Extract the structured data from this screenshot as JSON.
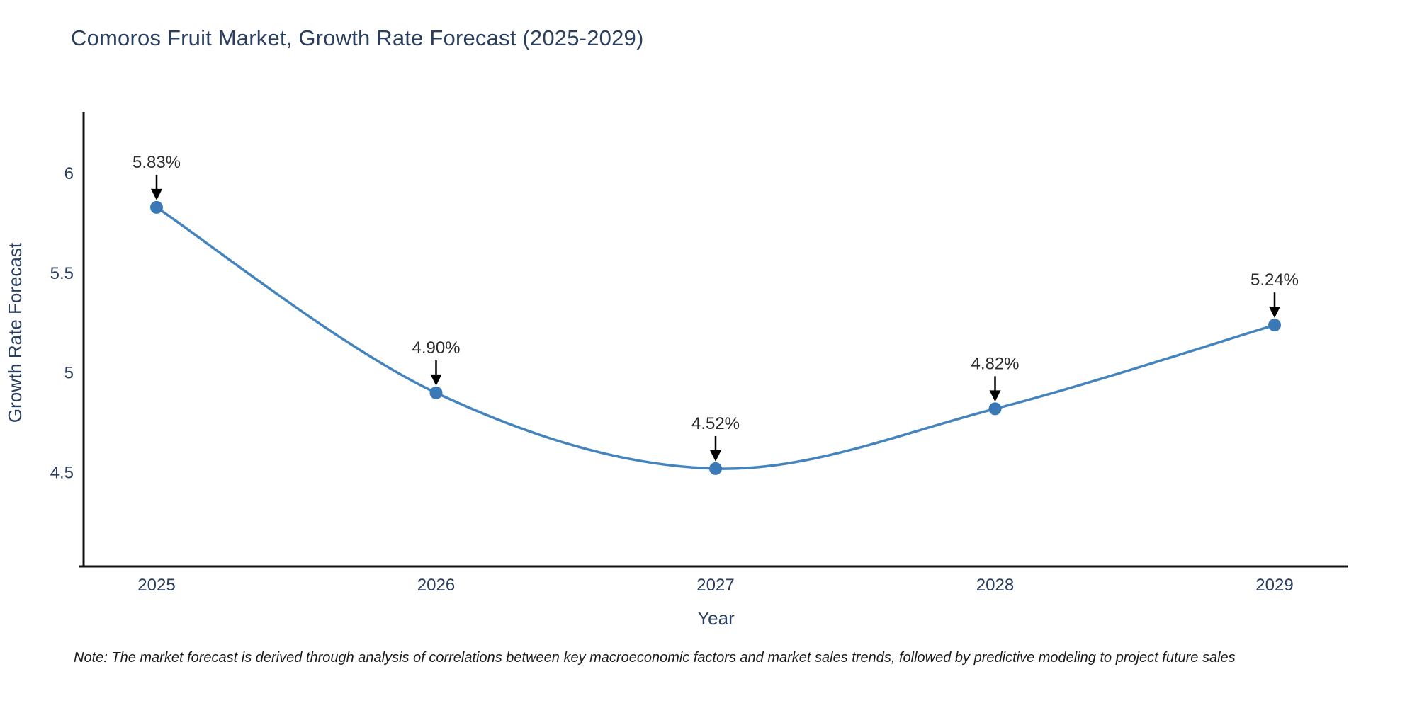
{
  "title": "Comoros Fruit Market, Growth Rate Forecast (2025-2029)",
  "note": "Note: The market forecast is derived through analysis of correlations between key macroeconomic factors and market sales trends, followed by predictive modeling to project future sales",
  "chart_data": {
    "type": "line",
    "title": "Comoros Fruit Market, Growth Rate Forecast (2025-2029)",
    "x": [
      2025,
      2026,
      2027,
      2028,
      2029
    ],
    "x_tick_labels": [
      "2025",
      "2026",
      "2027",
      "2028",
      "2029"
    ],
    "series": [
      {
        "name": "Growth Rate Forecast",
        "values": [
          5.83,
          4.9,
          4.52,
          4.82,
          5.24
        ]
      }
    ],
    "point_labels": [
      "5.83%",
      "4.90%",
      "4.52%",
      "4.82%",
      "5.24%"
    ],
    "xlabel": "Year",
    "ylabel": "Growth Rate Forecast",
    "yticks": [
      6,
      5.5,
      5,
      4.5
    ],
    "ytick_labels": [
      "6",
      "5.5",
      "5",
      "4.5"
    ],
    "ylim": [
      4.02,
      6.31
    ],
    "xlim": [
      2024.74,
      2029.26
    ],
    "grid": false,
    "legend_position": "none",
    "curve": "spline",
    "annotation_arrows": true,
    "colors": {
      "line": "#4484be",
      "marker": "#3a79b6",
      "axis": "#111111",
      "tick_label": "#2a3f5f",
      "axis_title": "#2a3f5f",
      "annotation": "#2b2b2b",
      "arrow": "#000000",
      "background": "#ffffff"
    }
  }
}
